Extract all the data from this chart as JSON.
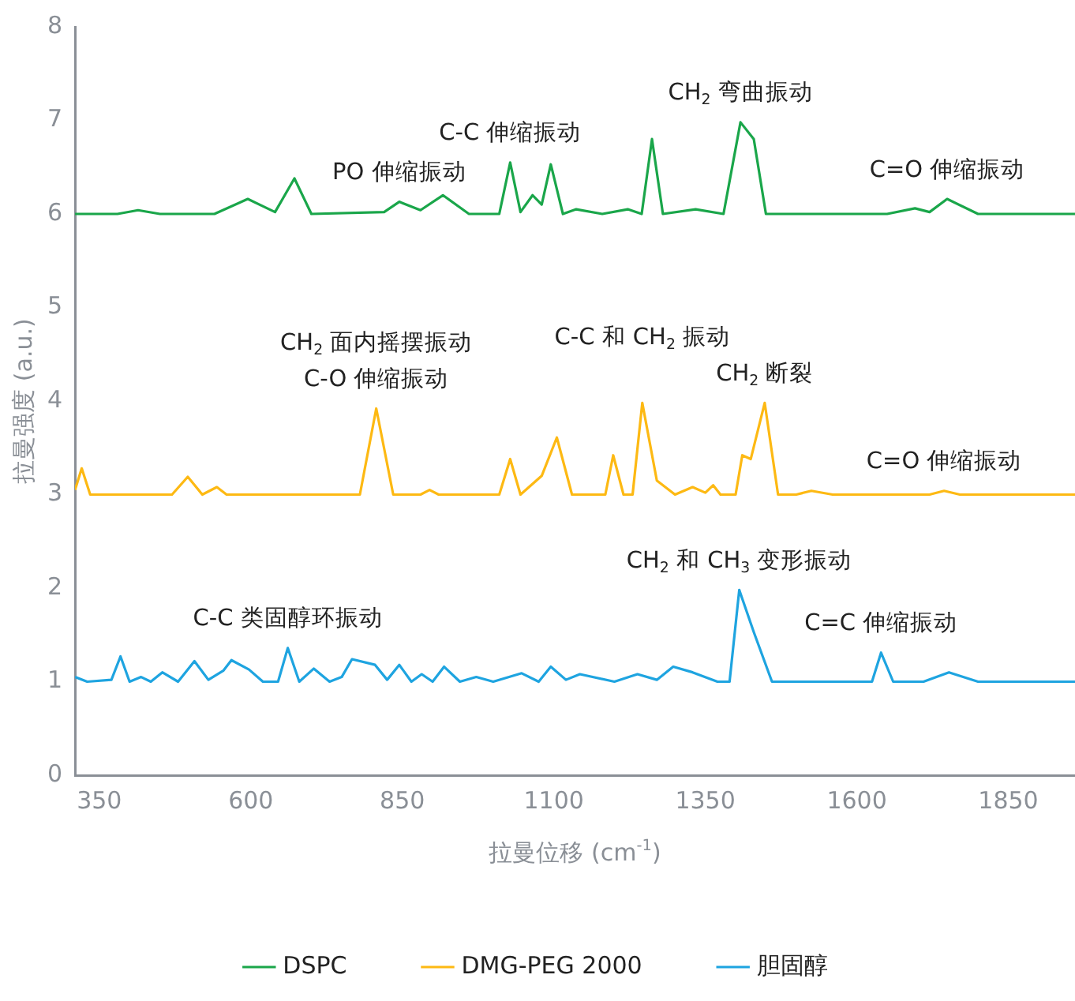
{
  "chart_data": {
    "type": "line",
    "xlabel": "拉曼位移 (cm$^{-1}$)",
    "ylabel": "拉曼强度 (a.u.)",
    "xlim": [
      310,
      1960
    ],
    "xticks": [
      350,
      600,
      850,
      1100,
      1350,
      1600,
      1850
    ],
    "ylim": [
      0,
      8
    ],
    "yticks": [
      0,
      1,
      2,
      3,
      4,
      5,
      6,
      7,
      8
    ],
    "legend": "bottom",
    "marker": "none",
    "line_style": "solid",
    "series": [
      {
        "name": "DSPC",
        "color": "#1aa64a",
        "x": [
          310,
          380,
          414,
          450,
          540,
          595,
          640,
          672,
          700,
          820,
          845,
          880,
          917,
          960,
          1010,
          1028,
          1045,
          1065,
          1080,
          1095,
          1115,
          1137,
          1180,
          1222,
          1245,
          1262,
          1280,
          1334,
          1380,
          1408,
          1430,
          1450,
          1500,
          1650,
          1696,
          1720,
          1749,
          1800,
          1960
        ],
        "values": [
          6.0,
          6.0,
          6.04,
          6.0,
          6.0,
          6.16,
          6.02,
          6.38,
          6.0,
          6.02,
          6.13,
          6.04,
          6.2,
          6.0,
          6.0,
          6.55,
          6.02,
          6.2,
          6.1,
          6.53,
          6.0,
          6.05,
          6.0,
          6.05,
          6.0,
          6.8,
          6.0,
          6.05,
          6.0,
          6.98,
          6.8,
          6.0,
          6.0,
          6.0,
          6.06,
          6.02,
          6.16,
          6.0,
          6.0
        ]
      },
      {
        "name": "DMG-PEG 2000",
        "color": "#fdb913",
        "x": [
          310,
          321,
          335,
          470,
          496,
          520,
          544,
          560,
          780,
          807,
          835,
          880,
          895,
          910,
          1010,
          1028,
          1045,
          1080,
          1105,
          1130,
          1185,
          1198,
          1215,
          1230,
          1246,
          1270,
          1300,
          1329,
          1350,
          1363,
          1375,
          1400,
          1411,
          1425,
          1448,
          1470,
          1500,
          1525,
          1560,
          1720,
          1744,
          1770,
          1960
        ],
        "values": [
          3.05,
          3.28,
          3.0,
          3.0,
          3.19,
          3.0,
          3.08,
          3.0,
          3.0,
          3.92,
          3.0,
          3.0,
          3.05,
          3.0,
          3.0,
          3.38,
          3.0,
          3.2,
          3.61,
          3.0,
          3.0,
          3.42,
          3.0,
          3.0,
          3.98,
          3.15,
          3.0,
          3.08,
          3.02,
          3.1,
          3.0,
          3.0,
          3.42,
          3.38,
          3.98,
          3.0,
          3.0,
          3.04,
          3.0,
          3.0,
          3.04,
          3.0,
          3.0
        ]
      },
      {
        "name": "胆固醇",
        "color": "#1ea4e0",
        "x": [
          310,
          330,
          370,
          385,
          400,
          419,
          435,
          454,
          480,
          507,
          530,
          555,
          568,
          597,
          620,
          645,
          661,
          680,
          704,
          730,
          750,
          767,
          805,
          825,
          845,
          865,
          882,
          900,
          919,
          945,
          972,
          1000,
          1047,
          1075,
          1095,
          1120,
          1143,
          1200,
          1238,
          1270,
          1297,
          1329,
          1370,
          1390,
          1406,
          1430,
          1460,
          1600,
          1625,
          1640,
          1660,
          1710,
          1752,
          1800,
          1960
        ],
        "values": [
          1.05,
          1.0,
          1.02,
          1.27,
          1.0,
          1.05,
          1.0,
          1.1,
          1.0,
          1.22,
          1.02,
          1.12,
          1.23,
          1.13,
          1.0,
          1.0,
          1.36,
          1.0,
          1.14,
          1.0,
          1.05,
          1.24,
          1.18,
          1.02,
          1.18,
          1.0,
          1.08,
          1.0,
          1.16,
          1.0,
          1.05,
          1.0,
          1.09,
          1.0,
          1.16,
          1.02,
          1.08,
          1.0,
          1.08,
          1.02,
          1.16,
          1.1,
          1.0,
          1.0,
          1.98,
          1.53,
          1.0,
          1.0,
          1.0,
          1.31,
          1.0,
          1.0,
          1.1,
          1.0,
          1.0
        ]
      }
    ],
    "annotations": [
      {
        "text": "CH$_{2}$ 弯曲振动",
        "x": 1408,
        "y": 6.98
      },
      {
        "text": "C-C 伸缩振动",
        "x": 1028,
        "y": 6.55
      },
      {
        "text": "PO 伸缩振动",
        "x": 845,
        "y": 6.13
      },
      {
        "text": "C=O 伸缩振动",
        "x": 1749,
        "y": 6.16
      },
      {
        "text": "CH$_{2}$ 面内摇摆振动\nC-O 伸缩振动",
        "x": 807,
        "y": 3.92
      },
      {
        "text": "C-C 和 CH$_{2}$ 振动",
        "x": 1246,
        "y": 3.98
      },
      {
        "text": "CH$_{2}$ 断裂",
        "x": 1448,
        "y": 3.98
      },
      {
        "text": "C=O 伸缩振动",
        "x": 1744,
        "y": 3.04
      },
      {
        "text": "CH$_{2}$ 和 CH$_{3}$ 变形振动",
        "x": 1406,
        "y": 1.98
      },
      {
        "text": "C-C 类固醇环振动",
        "x": 661,
        "y": 1.36
      },
      {
        "text": "C=C 伸缩振动",
        "x": 1640,
        "y": 1.31
      }
    ]
  }
}
